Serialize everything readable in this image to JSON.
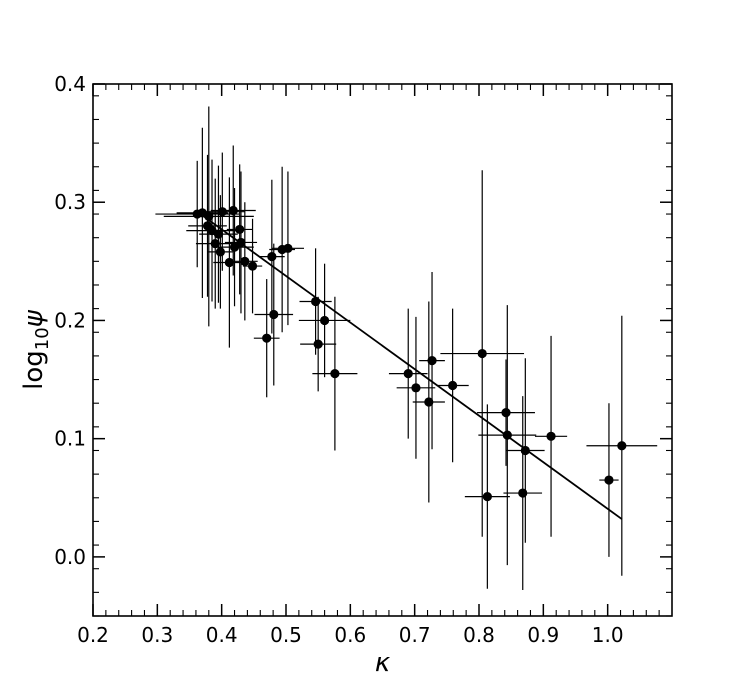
{
  "chart_data": {
    "type": "scatter",
    "title": "",
    "xlabel": "κ",
    "ylabel_main": "log",
    "ylabel_sub": "10",
    "ylabel_var": "ψ",
    "xlim": [
      0.2,
      1.1
    ],
    "ylim": [
      -0.05,
      0.4
    ],
    "xticks": [
      0.2,
      0.3,
      0.4,
      0.5,
      0.6,
      0.7,
      0.8,
      0.9,
      1.0
    ],
    "xtick_labels": [
      "0.2",
      "0.3",
      "0.4",
      "0.5",
      "0.6",
      "0.7",
      "0.8",
      "0.9",
      "1.0"
    ],
    "yticks": [
      0.0,
      0.1,
      0.2,
      0.3,
      0.4
    ],
    "ytick_labels": [
      "0.0",
      "0.1",
      "0.2",
      "0.3",
      "0.4"
    ],
    "grid": false,
    "point_color": "#000000",
    "points": [
      {
        "x": 0.362,
        "y": 0.29,
        "xerr": 0.065,
        "yerr": 0.045
      },
      {
        "x": 0.37,
        "y": 0.291,
        "xerr": 0.04,
        "yerr": 0.072
      },
      {
        "x": 0.378,
        "y": 0.28,
        "xerr": 0.03,
        "yerr": 0.06
      },
      {
        "x": 0.38,
        "y": 0.288,
        "xerr": 0.07,
        "yerr": 0.093
      },
      {
        "x": 0.385,
        "y": 0.276,
        "xerr": 0.04,
        "yerr": 0.06
      },
      {
        "x": 0.39,
        "y": 0.265,
        "xerr": 0.03,
        "yerr": 0.055
      },
      {
        "x": 0.395,
        "y": 0.273,
        "xerr": 0.03,
        "yerr": 0.058
      },
      {
        "x": 0.398,
        "y": 0.258,
        "xerr": 0.02,
        "yerr": 0.048
      },
      {
        "x": 0.401,
        "y": 0.292,
        "xerr": 0.035,
        "yerr": 0.05
      },
      {
        "x": 0.412,
        "y": 0.249,
        "xerr": 0.025,
        "yerr": 0.072
      },
      {
        "x": 0.418,
        "y": 0.293,
        "xerr": 0.035,
        "yerr": 0.055
      },
      {
        "x": 0.42,
        "y": 0.262,
        "xerr": 0.03,
        "yerr": 0.05
      },
      {
        "x": 0.428,
        "y": 0.277,
        "xerr": 0.02,
        "yerr": 0.055
      },
      {
        "x": 0.43,
        "y": 0.266,
        "xerr": 0.025,
        "yerr": 0.06
      },
      {
        "x": 0.436,
        "y": 0.25,
        "xerr": 0.02,
        "yerr": 0.05
      },
      {
        "x": 0.448,
        "y": 0.246,
        "xerr": 0.015,
        "yerr": 0.04
      },
      {
        "x": 0.47,
        "y": 0.185,
        "xerr": 0.02,
        "yerr": 0.05
      },
      {
        "x": 0.478,
        "y": 0.254,
        "xerr": 0.02,
        "yerr": 0.065
      },
      {
        "x": 0.481,
        "y": 0.205,
        "xerr": 0.03,
        "yerr": 0.06
      },
      {
        "x": 0.494,
        "y": 0.26,
        "xerr": 0.02,
        "yerr": 0.07
      },
      {
        "x": 0.503,
        "y": 0.261,
        "xerr": 0.025,
        "yerr": 0.065
      },
      {
        "x": 0.546,
        "y": 0.216,
        "xerr": 0.025,
        "yerr": 0.045
      },
      {
        "x": 0.55,
        "y": 0.18,
        "xerr": 0.028,
        "yerr": 0.04
      },
      {
        "x": 0.56,
        "y": 0.2,
        "xerr": 0.04,
        "yerr": 0.048
      },
      {
        "x": 0.576,
        "y": 0.155,
        "xerr": 0.035,
        "yerr": 0.065
      },
      {
        "x": 0.69,
        "y": 0.155,
        "xerr": 0.03,
        "yerr": 0.055
      },
      {
        "x": 0.702,
        "y": 0.143,
        "xerr": 0.03,
        "yerr": 0.06
      },
      {
        "x": 0.722,
        "y": 0.131,
        "xerr": 0.025,
        "yerr": 0.085
      },
      {
        "x": 0.727,
        "y": 0.166,
        "xerr": 0.02,
        "yerr": 0.075
      },
      {
        "x": 0.759,
        "y": 0.145,
        "xerr": 0.025,
        "yerr": 0.065
      },
      {
        "x": 0.805,
        "y": 0.172,
        "xerr": 0.065,
        "yerr": 0.155
      },
      {
        "x": 0.813,
        "y": 0.051,
        "xerr": 0.035,
        "yerr": 0.078
      },
      {
        "x": 0.842,
        "y": 0.122,
        "xerr": 0.045,
        "yerr": 0.045
      },
      {
        "x": 0.844,
        "y": 0.103,
        "xerr": 0.045,
        "yerr": 0.11
      },
      {
        "x": 0.868,
        "y": 0.054,
        "xerr": 0.03,
        "yerr": 0.082
      },
      {
        "x": 0.872,
        "y": 0.09,
        "xerr": 0.03,
        "yerr": 0.078
      },
      {
        "x": 0.912,
        "y": 0.102,
        "xerr": 0.025,
        "yerr": 0.085
      },
      {
        "x": 1.002,
        "y": 0.065,
        "xerr": 0.015,
        "yerr": 0.065
      },
      {
        "x": 1.022,
        "y": 0.094,
        "xerr": 0.055,
        "yerr": 0.11
      }
    ],
    "fit_line": {
      "x": [
        0.362,
        1.022
      ],
      "y": [
        0.292,
        0.032
      ]
    }
  }
}
